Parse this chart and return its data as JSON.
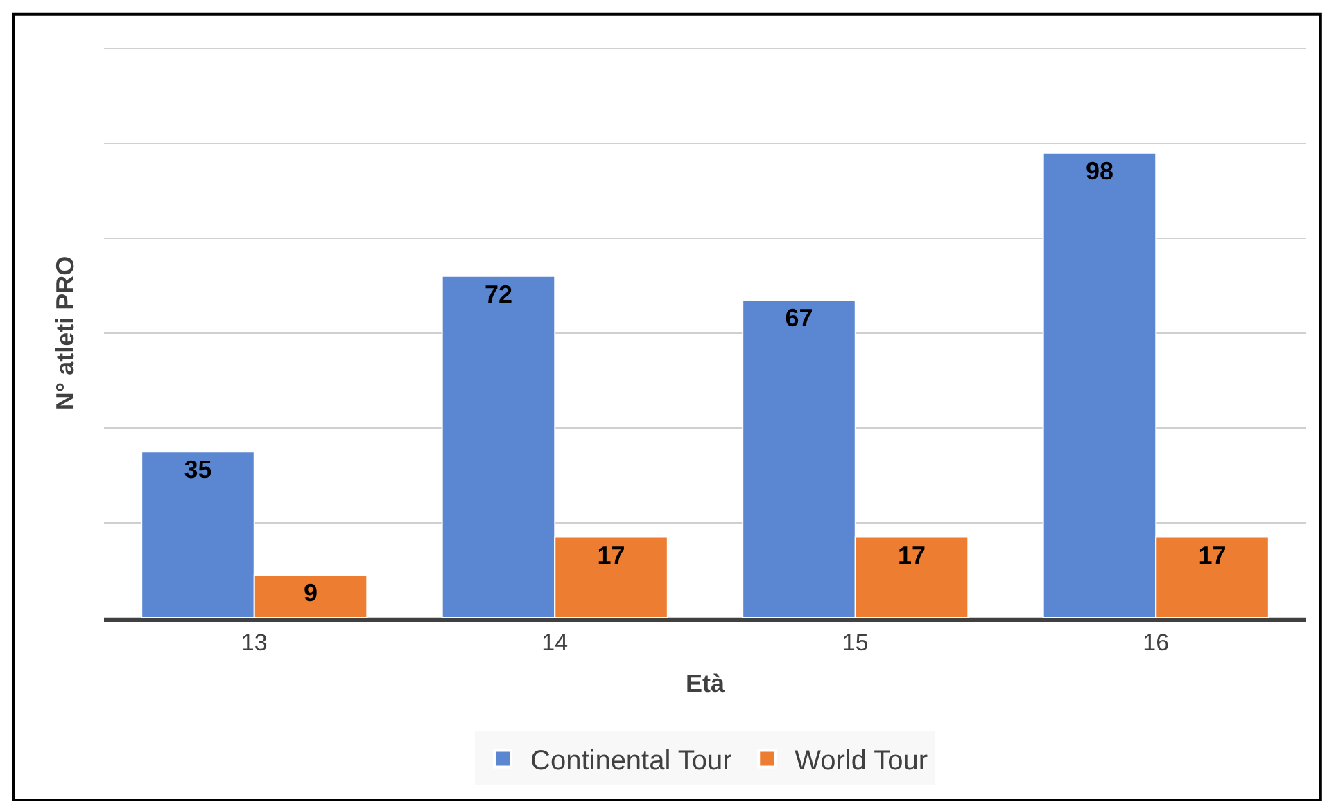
{
  "chart_data": {
    "type": "bar",
    "xlabel": "Età",
    "ylabel": "N° atleti PRO",
    "categories": [
      "13",
      "14",
      "15",
      "16"
    ],
    "series": [
      {
        "name": "Continental Tour",
        "color": "#5b86d1",
        "values": [
          35,
          72,
          67,
          98
        ]
      },
      {
        "name": "World Tour",
        "color": "#ed7d31",
        "values": [
          9,
          17,
          17,
          17
        ]
      }
    ],
    "yticks": [
      {
        "value": 0,
        "label": null
      },
      {
        "value": 20,
        "label": null
      },
      {
        "value": 40,
        "label": null
      },
      {
        "value": 60,
        "label": null
      },
      {
        "value": 80,
        "label": null
      },
      {
        "value": 100,
        "label": null
      },
      {
        "value": 120,
        "label": null
      }
    ],
    "ylim": [
      0,
      120
    ],
    "tick_labels": "x",
    "grid": "y",
    "legend": "bottom",
    "data_labels": true
  }
}
